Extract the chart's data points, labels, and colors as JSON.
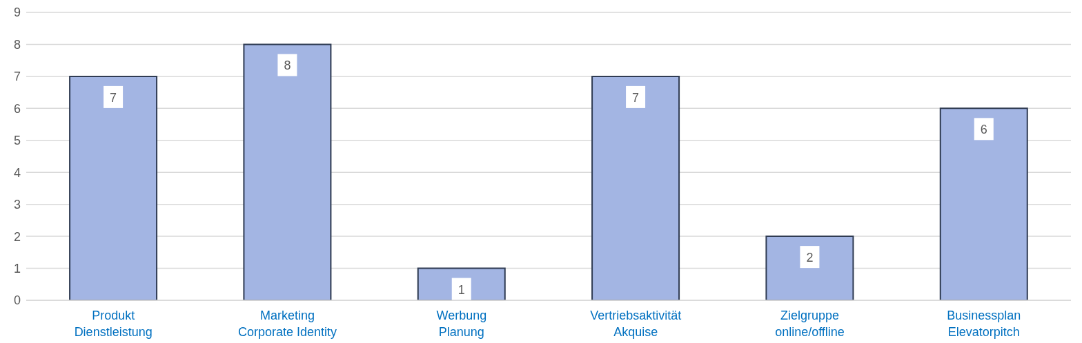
{
  "chart_data": {
    "type": "bar",
    "categories": [
      "Produkt\nDienstleistung",
      "Marketing\nCorporate Identity",
      "Werbung\nPlanung",
      "Vertriebsaktivität\nAkquise",
      "Zielgruppe\nonline/offline",
      "Businessplan\nElevatorpitch"
    ],
    "values": [
      7,
      8,
      1,
      7,
      2,
      6
    ],
    "color": "#a3b5e3",
    "ylim": [
      0,
      9
    ],
    "yticks": [
      0,
      1,
      2,
      3,
      4,
      5,
      6,
      7,
      8,
      9
    ],
    "grid": "y",
    "data_labels": true
  }
}
